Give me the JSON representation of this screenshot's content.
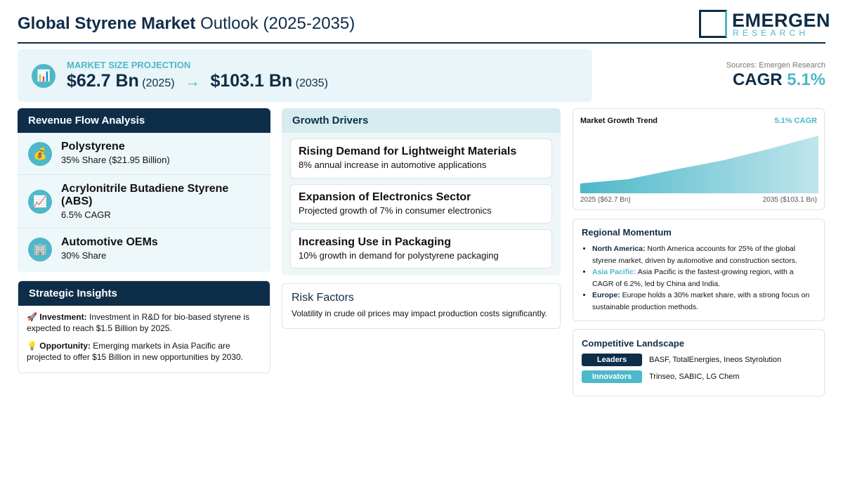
{
  "header": {
    "title_bold": "Global Styrene Market",
    "title_rest": "Outlook (2025-2035)",
    "logo_main": "EMERGEN",
    "logo_sub": "RESEARCH"
  },
  "projection": {
    "label": "MARKET SIZE PROJECTION",
    "start_value": "$62.7 Bn",
    "start_year": "(2025)",
    "end_value": "$103.1 Bn",
    "end_year": "(2035)",
    "source": "Sources: Emergen Research",
    "cagr_label": "CAGR",
    "cagr_value": "5.1%"
  },
  "revenue_flow": {
    "title": "Revenue Flow Analysis",
    "items": [
      {
        "name": "Polystyrene",
        "detail": "35% Share ($21.95 Billion)"
      },
      {
        "name": "Acrylonitrile Butadiene Styrene (ABS)",
        "detail": "6.5% CAGR"
      },
      {
        "name": "Automotive OEMs",
        "detail": "30% Share"
      }
    ]
  },
  "strategic_insights": {
    "title": "Strategic Insights",
    "items": [
      {
        "label": "Investment:",
        "text": "Investment in R&D for bio-based styrene is expected to reach $1.5 Billion by 2025."
      },
      {
        "label": "Opportunity:",
        "text": "Emerging markets in Asia Pacific are projected to offer $15 Billion in new opportunities by 2030."
      }
    ]
  },
  "growth_drivers": {
    "title": "Growth Drivers",
    "items": [
      {
        "title": "Rising Demand for Lightweight Materials",
        "text": "8% annual increase in automotive applications"
      },
      {
        "title": "Expansion of Electronics Sector",
        "text": "Projected growth of 7% in consumer electronics"
      },
      {
        "title": "Increasing Use in Packaging",
        "text": "10% growth in demand for polystyrene packaging"
      }
    ]
  },
  "risk_factors": {
    "title": "Risk Factors",
    "text": "Volatility in crude oil prices may impact production costs significantly."
  },
  "trend": {
    "title": "Market Growth Trend",
    "badge": "5.1% CAGR",
    "start_label": "2025 ($62.7 Bn)",
    "end_label": "2035 ($103.1 Bn)"
  },
  "regional": {
    "title": "Regional Momentum",
    "items": [
      {
        "region": "North America:",
        "text": "North America accounts for 25% of the global styrene market, driven by automotive and construction sectors."
      },
      {
        "region": "Asia Pacific:",
        "text": "Asia Pacific is the fastest-growing region, with a CAGR of 6.2%, led by China and India."
      },
      {
        "region": "Europe:",
        "text": "Europe holds a 30% market share, with a strong focus on sustainable production methods."
      }
    ]
  },
  "competitive": {
    "title": "Competitive Landscape",
    "rows": [
      {
        "tag": "Leaders",
        "names": "BASF, TotalEnergies, Ineos Styrolution"
      },
      {
        "tag": "Innovators",
        "names": "Trinseo, SABIC, LG Chem"
      }
    ]
  }
}
